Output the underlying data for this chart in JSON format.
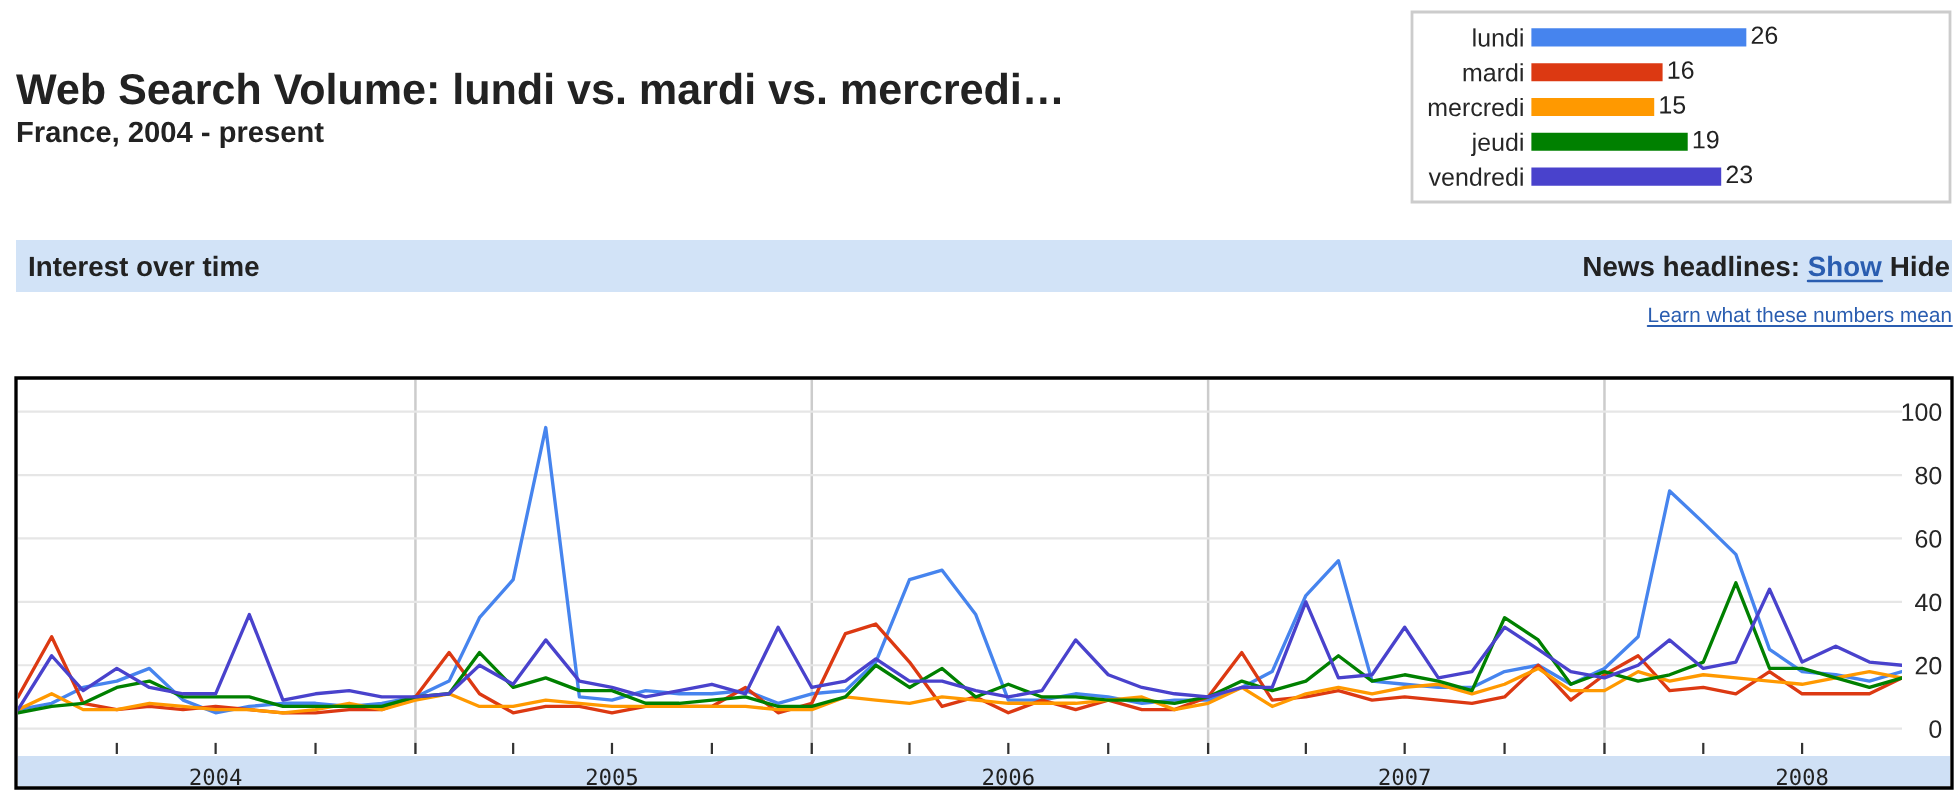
{
  "chart_data": [
    {
      "type": "line",
      "title": "Web Search Volume: lundi vs. mardi vs. mercredi…",
      "subtitle": "France, 2004 - present",
      "annotations": [
        "Interest over time",
        "News headlines:",
        "Show",
        "Hide",
        "Learn what these numbers mean"
      ],
      "x": [
        "2004-01",
        "2004-02",
        "2004-03",
        "2004-04",
        "2004-05",
        "2004-06",
        "2004-07",
        "2004-08",
        "2004-09",
        "2004-10",
        "2004-11",
        "2004-12",
        "2005-01",
        "2005-02",
        "2005-03",
        "2005-04",
        "2005-05",
        "2005-06",
        "2005-07",
        "2005-08",
        "2005-09",
        "2005-10",
        "2005-11",
        "2005-12",
        "2006-01",
        "2006-02",
        "2006-03",
        "2006-04",
        "2006-05",
        "2006-06",
        "2006-07",
        "2006-08",
        "2006-09",
        "2006-10",
        "2006-11",
        "2006-12",
        "2007-01",
        "2007-02",
        "2007-03",
        "2007-04",
        "2007-05",
        "2007-06",
        "2007-07",
        "2007-08",
        "2007-09",
        "2007-10",
        "2007-11",
        "2007-12",
        "2008-01",
        "2008-02",
        "2008-03",
        "2008-04",
        "2008-05",
        "2008-06",
        "2008-07",
        "2008-08",
        "2008-09",
        "2008-10"
      ],
      "series": [
        {
          "color": "#4684ee",
          "values": [
            6,
            8,
            13,
            15,
            19,
            9,
            5,
            7,
            8,
            8,
            7,
            8,
            10,
            15,
            35,
            47,
            95,
            10,
            9,
            12,
            11,
            11,
            12,
            8,
            11,
            12,
            21,
            47,
            50,
            36,
            9,
            9,
            11,
            10,
            8,
            9,
            9,
            13,
            18,
            42,
            53,
            15,
            14,
            13,
            13,
            18,
            20,
            14,
            19,
            29,
            75,
            65,
            55,
            25,
            18,
            17,
            15,
            18
          ]
        },
        {
          "color": "#dc3912",
          "values": [
            10,
            29,
            8,
            6,
            7,
            6,
            7,
            6,
            5,
            5,
            6,
            6,
            10,
            24,
            11,
            5,
            7,
            7,
            5,
            7,
            7,
            7,
            13,
            5,
            8,
            30,
            33,
            21,
            7,
            10,
            5,
            9,
            6,
            9,
            6,
            6,
            10,
            24,
            9,
            10,
            12,
            9,
            10,
            9,
            8,
            10,
            20,
            9,
            17,
            23,
            12,
            13,
            11,
            18,
            11,
            11,
            11,
            16
          ]
        },
        {
          "color": "#ff9900",
          "values": [
            6,
            11,
            6,
            6,
            8,
            7,
            6,
            6,
            5,
            6,
            8,
            6,
            9,
            11,
            7,
            7,
            9,
            8,
            7,
            7,
            7,
            7,
            7,
            6,
            6,
            10,
            9,
            8,
            10,
            9,
            8,
            8,
            8,
            9,
            10,
            6,
            8,
            13,
            7,
            11,
            13,
            11,
            13,
            14,
            11,
            14,
            19,
            12,
            12,
            18,
            15,
            17,
            16,
            15,
            14,
            16,
            18,
            16
          ]
        },
        {
          "color": "#008000",
          "values": [
            5,
            7,
            8,
            13,
            15,
            10,
            10,
            10,
            7,
            7,
            7,
            7,
            10,
            11,
            24,
            13,
            16,
            12,
            12,
            8,
            8,
            9,
            10,
            7,
            7,
            10,
            20,
            13,
            19,
            10,
            14,
            10,
            10,
            9,
            9,
            8,
            10,
            15,
            12,
            15,
            23,
            15,
            17,
            15,
            12,
            35,
            28,
            14,
            18,
            15,
            17,
            21,
            46,
            19,
            19,
            16,
            13,
            16
          ]
        },
        {
          "color": "#4942cc",
          "values": [
            6,
            23,
            12,
            19,
            13,
            11,
            11,
            36,
            9,
            11,
            12,
            10,
            10,
            11,
            20,
            14,
            28,
            15,
            13,
            10,
            12,
            14,
            11,
            32,
            13,
            15,
            22,
            15,
            15,
            12,
            10,
            12,
            28,
            17,
            13,
            11,
            10,
            13,
            13,
            40,
            16,
            17,
            32,
            16,
            18,
            32,
            25,
            18,
            16,
            20,
            28,
            19,
            21,
            44,
            21,
            26,
            21,
            20
          ]
        }
      ],
      "xlim": [
        "2004-01",
        "2008-10"
      ],
      "xticks": [
        {
          "value": "2004-04",
          "label": null
        },
        {
          "value": "2004-07",
          "label": "2004"
        },
        {
          "value": "2004-10",
          "label": null
        },
        {
          "value": "2005-01",
          "label": null
        },
        {
          "value": "2005-04",
          "label": null
        },
        {
          "value": "2005-07",
          "label": "2005"
        },
        {
          "value": "2005-10",
          "label": null
        },
        {
          "value": "2006-01",
          "label": null
        },
        {
          "value": "2006-04",
          "label": null
        },
        {
          "value": "2006-07",
          "label": "2006"
        },
        {
          "value": "2006-10",
          "label": null
        },
        {
          "value": "2007-01",
          "label": null
        },
        {
          "value": "2007-04",
          "label": null
        },
        {
          "value": "2007-07",
          "label": "2007"
        },
        {
          "value": "2007-10",
          "label": null
        },
        {
          "value": "2008-01",
          "label": null
        },
        {
          "value": "2008-04",
          "label": null
        },
        {
          "value": "2008-07",
          "label": "2008"
        }
      ],
      "ylim": [
        -8,
        110
      ],
      "yticks": [
        0,
        20,
        40,
        60,
        80,
        100
      ],
      "grid": "y",
      "ref_lines": [
        {
          "axis": "x",
          "value": "2005-01",
          "color": "#cccccc"
        },
        {
          "axis": "x",
          "value": "2006-01",
          "color": "#cccccc"
        },
        {
          "axis": "x",
          "value": "2007-01",
          "color": "#cccccc"
        },
        {
          "axis": "x",
          "value": "2008-01",
          "color": "#cccccc"
        }
      ]
    },
    {
      "type": "bar",
      "orientation": "horizontal",
      "categories": [
        "lundi",
        "mardi",
        "mercredi",
        "jeudi",
        "vendredi"
      ],
      "values": [
        26,
        16,
        15,
        19,
        23
      ],
      "colors": [
        "#4684ee",
        "#dc3912",
        "#ff9900",
        "#008000",
        "#4942cc"
      ],
      "data_labels": true,
      "tick_labels": "y"
    }
  ]
}
